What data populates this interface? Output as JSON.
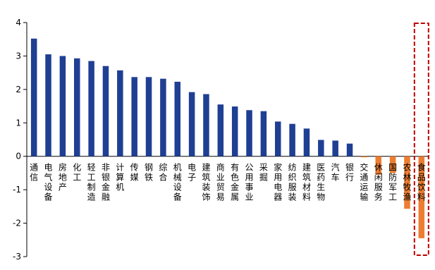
{
  "chart_data": {
    "type": "bar",
    "title": "",
    "xlabel": "",
    "ylabel": "",
    "ylim": [
      -3,
      4
    ],
    "yticks": [
      4,
      3,
      2,
      1,
      0,
      -1,
      -2,
      -3
    ],
    "grid": false,
    "legend": "none",
    "colors": {
      "positive": "#1F3F93",
      "negative": "#ED7D31",
      "highlight_box": "#C00000"
    },
    "highlight_category": "食品饮料",
    "categories": [
      "通信",
      "电气设备",
      "房地产",
      "化工",
      "轻工制造",
      "非银金融",
      "计算机",
      "传媒",
      "钢铁",
      "综合",
      "机械设备",
      "电子",
      "建筑装饰",
      "商业贸易",
      "有色金属",
      "公用事业",
      "采掘",
      "家用电器",
      "纺织服装",
      "建筑材料",
      "医药生物",
      "汽车",
      "银行",
      "交通运输",
      "休闲服务",
      "国防军工",
      "农林牧渔",
      "食品饮料"
    ],
    "values": [
      3.52,
      3.05,
      3.0,
      2.93,
      2.85,
      2.7,
      2.57,
      2.37,
      2.37,
      2.32,
      2.23,
      1.92,
      1.86,
      1.55,
      1.49,
      1.38,
      1.35,
      1.04,
      0.97,
      0.83,
      0.49,
      0.47,
      0.38,
      -0.03,
      -0.55,
      -0.5,
      -1.57,
      -2.45
    ]
  }
}
